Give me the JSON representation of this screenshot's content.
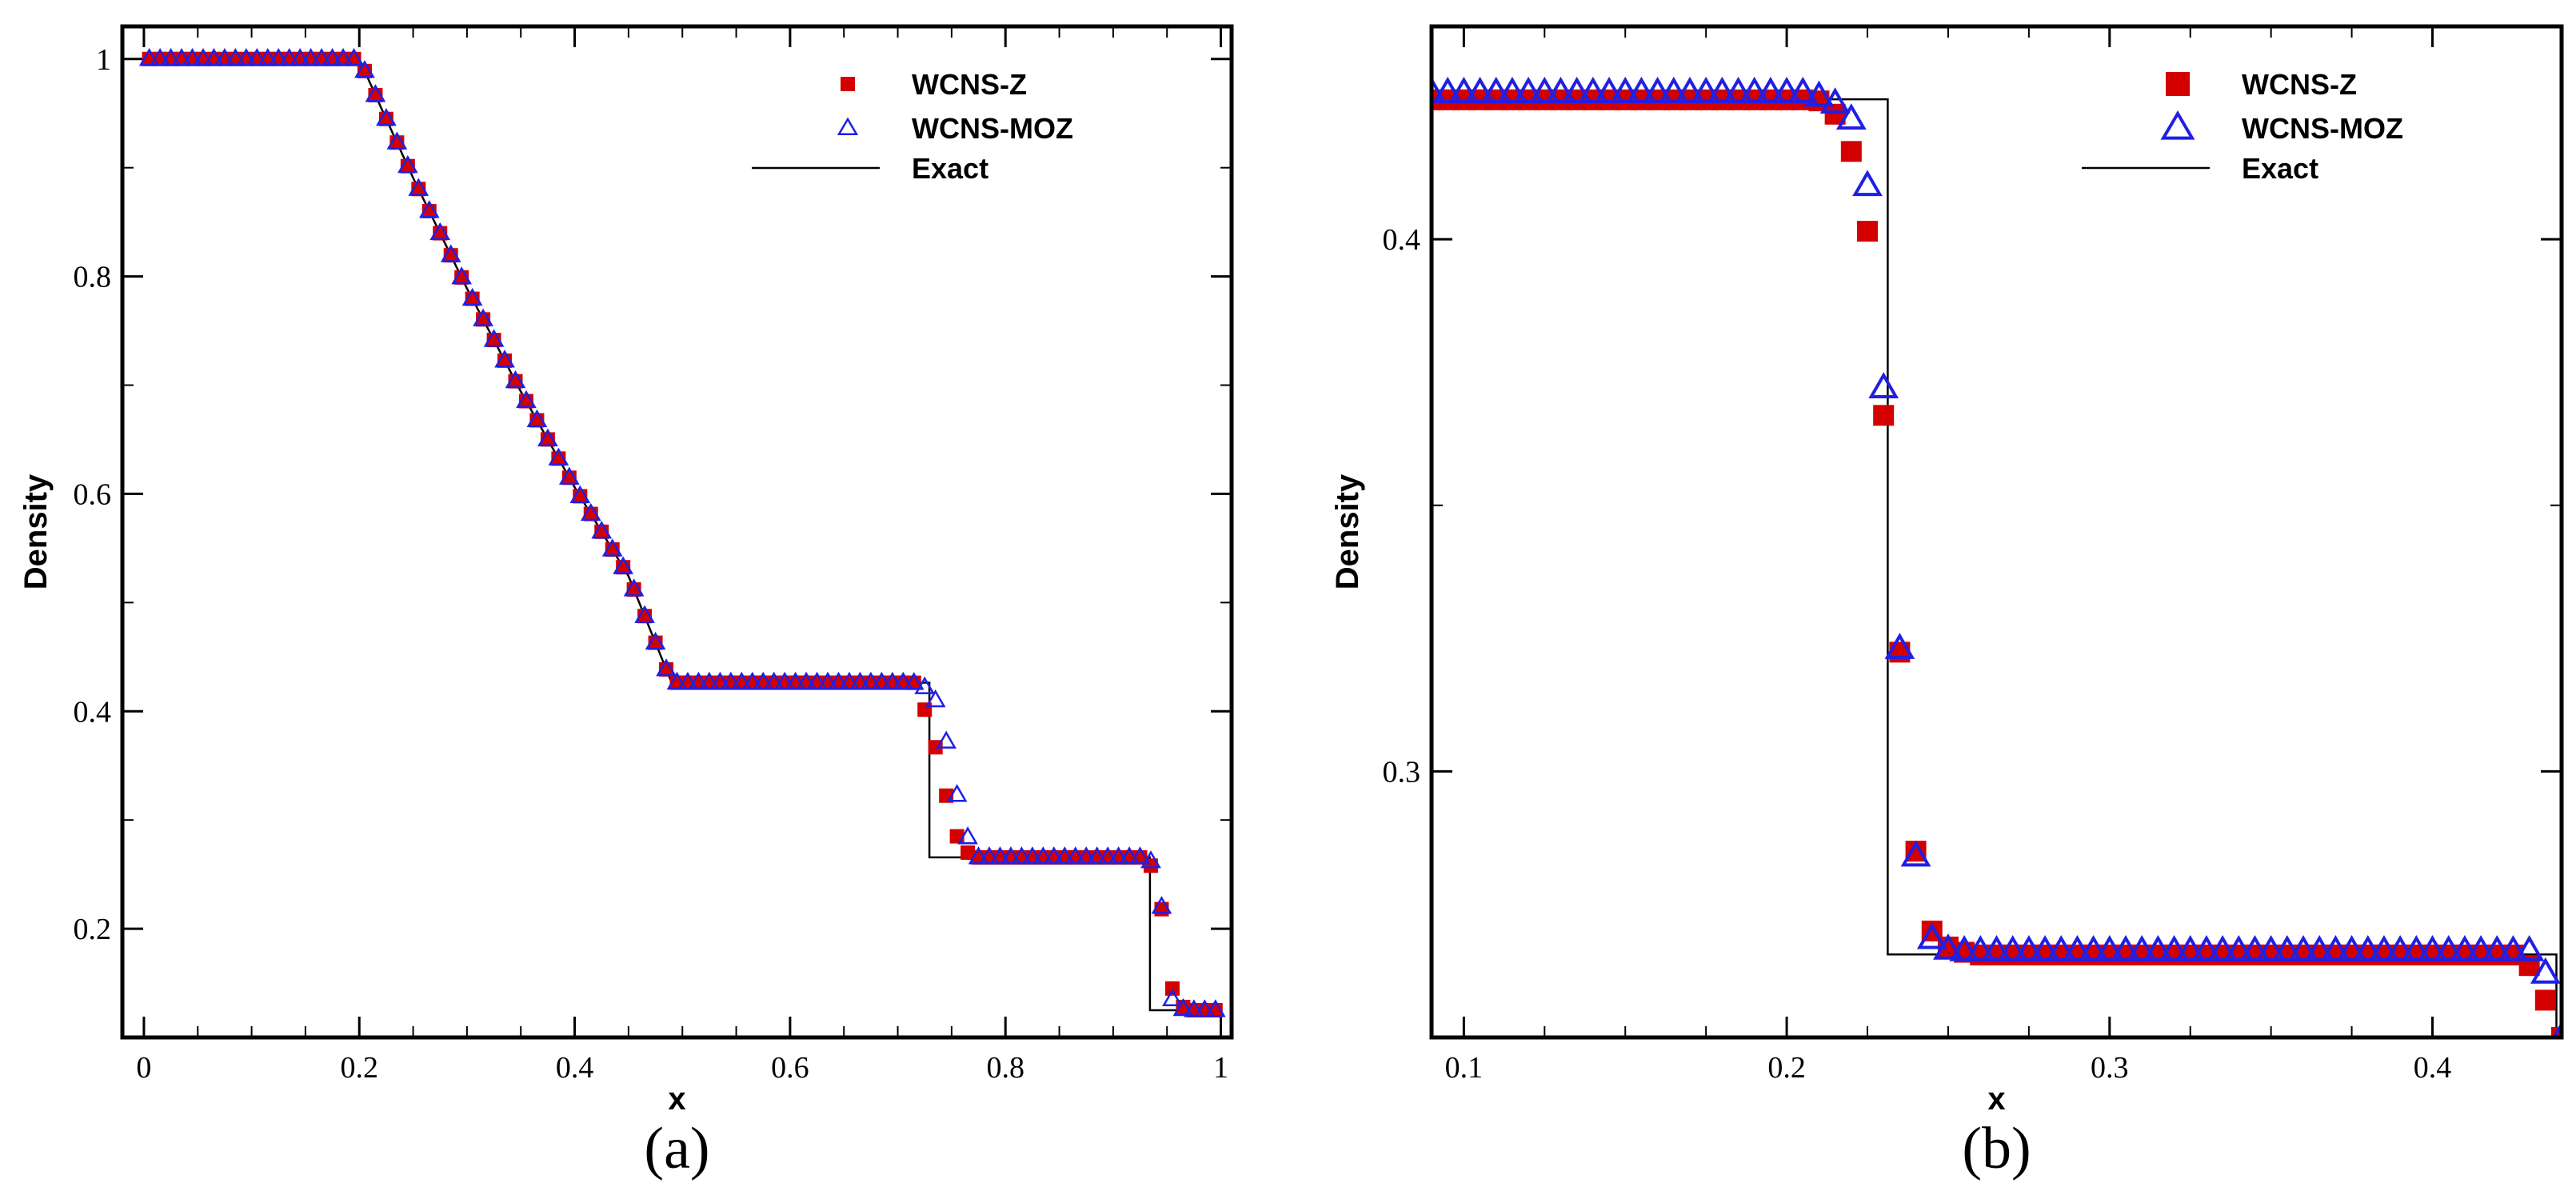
{
  "colors": {
    "wcns_z": "#d40000",
    "wcns_moz": "#1f1fe6",
    "exact": "#000000"
  },
  "chart_data": [
    {
      "type": "scatter",
      "panel_label": "(a)",
      "xlabel": "x",
      "ylabel": "Density",
      "xlim": [
        -0.02,
        1.01
      ],
      "ylim": [
        0.1,
        1.03
      ],
      "xticks": [
        0,
        0.2,
        0.4,
        0.6,
        0.8,
        1
      ],
      "xtick_labels": [
        "0",
        "0.2",
        "0.4",
        "0.6",
        "0.8",
        "1"
      ],
      "yticks": [
        0.2,
        0.4,
        0.6,
        0.8,
        1
      ],
      "ytick_labels": [
        "0.2",
        "0.4",
        "0.6",
        "0.8",
        "1"
      ],
      "legend": [
        "WCNS-Z",
        "WCNS-MOZ",
        "Exact"
      ],
      "legend_position": "top-right",
      "marker_style": "small",
      "x_sampling": {
        "start": 0.005,
        "end": 1.0,
        "step": 0.01
      },
      "exact": {
        "x": [
          0,
          0.2,
          0.22,
          0.25,
          0.3,
          0.35,
          0.4,
          0.45,
          0.49,
          0.7294,
          0.7294,
          0.9342,
          0.9342,
          1.0
        ],
        "y": [
          1.0,
          1.0,
          0.9557,
          0.8906,
          0.7889,
          0.6941,
          0.606,
          0.5243,
          0.4263,
          0.4263,
          0.2656,
          0.2656,
          0.125,
          0.125
        ]
      },
      "series": [
        {
          "name": "WCNS-Z",
          "marker": "square",
          "shock_profile": [
            [
              0.715,
              0.4262
            ],
            [
              0.725,
              0.4015
            ],
            [
              0.735,
              0.3669
            ],
            [
              0.745,
              0.3224
            ],
            [
              0.755,
              0.285
            ],
            [
              0.765,
              0.27
            ]
          ],
          "contact_profile": [
            [
              0.925,
              0.2656
            ],
            [
              0.935,
              0.258
            ],
            [
              0.945,
              0.218
            ],
            [
              0.955,
              0.145
            ],
            [
              0.965,
              0.128
            ]
          ]
        },
        {
          "name": "WCNS-MOZ",
          "marker": "triangle",
          "shock_profile": [
            [
              0.715,
              0.426
            ],
            [
              0.725,
              0.422
            ],
            [
              0.735,
              0.41
            ],
            [
              0.745,
              0.372
            ],
            [
              0.755,
              0.323
            ],
            [
              0.765,
              0.284
            ]
          ],
          "contact_profile": [
            [
              0.925,
              0.2656
            ],
            [
              0.935,
              0.262
            ],
            [
              0.945,
              0.22
            ],
            [
              0.955,
              0.135
            ],
            [
              0.965,
              0.126
            ]
          ]
        }
      ]
    },
    {
      "type": "scatter",
      "panel_label": "(b)",
      "xlabel": "x",
      "ylabel": "Density",
      "xlim": [
        0.09,
        0.44
      ],
      "ylim": [
        0.25,
        0.44
      ],
      "xticks": [
        0.1,
        0.2,
        0.3,
        0.4
      ],
      "xtick_labels": [
        "0.1",
        "0.2",
        "0.3",
        "0.4"
      ],
      "yticks": [
        0.3,
        0.4
      ],
      "ytick_labels": [
        "0.3",
        "0.4"
      ],
      "legend": [
        "WCNS-Z",
        "WCNS-MOZ",
        "Exact"
      ],
      "legend_position": "top-right",
      "marker_style": "large",
      "x_sampling": {
        "start": 0.09,
        "end": 0.44,
        "step": 0.005
      },
      "exact": {
        "x": [
          0.09,
          0.2313,
          0.2313,
          0.4384,
          0.4384
        ],
        "y": [
          0.4263,
          0.4263,
          0.2656,
          0.2656,
          0.25
        ]
      },
      "series": [
        {
          "name": "WCNS-Z",
          "marker": "square",
          "profile": [
            [
              0.09,
              0.4262
            ],
            [
              0.205,
              0.4262
            ],
            [
              0.21,
              0.426
            ],
            [
              0.215,
              0.4235
            ],
            [
              0.22,
              0.4165
            ],
            [
              0.225,
              0.4015
            ],
            [
              0.23,
              0.3669
            ],
            [
              0.235,
              0.3224
            ],
            [
              0.24,
              0.285
            ],
            [
              0.245,
              0.27
            ],
            [
              0.25,
              0.267
            ],
            [
              0.255,
              0.266
            ],
            [
              0.26,
              0.2655
            ],
            [
              0.425,
              0.2655
            ],
            [
              0.43,
              0.2635
            ],
            [
              0.435,
              0.257
            ]
          ]
        },
        {
          "name": "WCNS-MOZ",
          "marker": "triangle",
          "profile": [
            [
              0.09,
              0.4275
            ],
            [
              0.205,
              0.4275
            ],
            [
              0.21,
              0.4268
            ],
            [
              0.215,
              0.4255
            ],
            [
              0.22,
              0.4225
            ],
            [
              0.225,
              0.41
            ],
            [
              0.23,
              0.372
            ],
            [
              0.235,
              0.323
            ],
            [
              0.24,
              0.284
            ],
            [
              0.245,
              0.2685
            ],
            [
              0.25,
              0.2665
            ],
            [
              0.255,
              0.2662
            ],
            [
              0.26,
              0.2662
            ],
            [
              0.43,
              0.2662
            ],
            [
              0.435,
              0.262
            ]
          ]
        }
      ]
    }
  ]
}
